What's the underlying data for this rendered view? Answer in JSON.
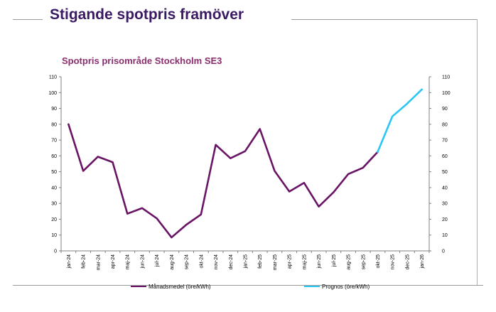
{
  "slide": {
    "title": "Stigande spotpris framöver"
  },
  "chart_data": {
    "type": "line",
    "title": "Spotpris prisområde Stockholm SE3",
    "categories": [
      "jan-24",
      "feb-24",
      "mar-24",
      "apr-24",
      "maj-24",
      "jun-24",
      "jul-24",
      "aug-24",
      "sep-24",
      "okt-24",
      "nov-24",
      "dec-24",
      "jan-25",
      "feb-25",
      "mar-25",
      "apr-25",
      "maj-25",
      "jun-25",
      "jul-25",
      "aug-25",
      "sep-25",
      "okt-25",
      "nov-25",
      "dec-25",
      "jan-26"
    ],
    "series": [
      {
        "name": "Månadsmedel (öre/kWh)",
        "color": "#6a1466",
        "values": [
          80,
          50.5,
          59.5,
          56,
          23.5,
          27,
          20.5,
          8.5,
          16.5,
          23,
          67,
          58.5,
          63,
          77,
          50.5,
          37.5,
          43,
          28,
          37,
          48.5,
          52.5,
          62.5,
          null,
          null,
          null
        ]
      },
      {
        "name": "Prognos (öre/kWh)",
        "color": "#29c7f2",
        "values": [
          null,
          null,
          null,
          null,
          null,
          null,
          null,
          null,
          null,
          null,
          null,
          null,
          null,
          null,
          null,
          null,
          null,
          null,
          null,
          null,
          null,
          62.5,
          85,
          93,
          102
        ]
      }
    ],
    "ylim": [
      0,
      110
    ],
    "yticks": [
      "0",
      "10",
      "20",
      "30",
      "40",
      "50",
      "60",
      "70",
      "80",
      "90",
      "100",
      "110"
    ],
    "y2ticks": [
      "0",
      "10",
      "20",
      "30",
      "40",
      "50",
      "60",
      "70",
      "80",
      "90",
      "100",
      "110"
    ],
    "xlabel": "",
    "ylabel": "",
    "grid": false,
    "legend_position": "bottom"
  }
}
